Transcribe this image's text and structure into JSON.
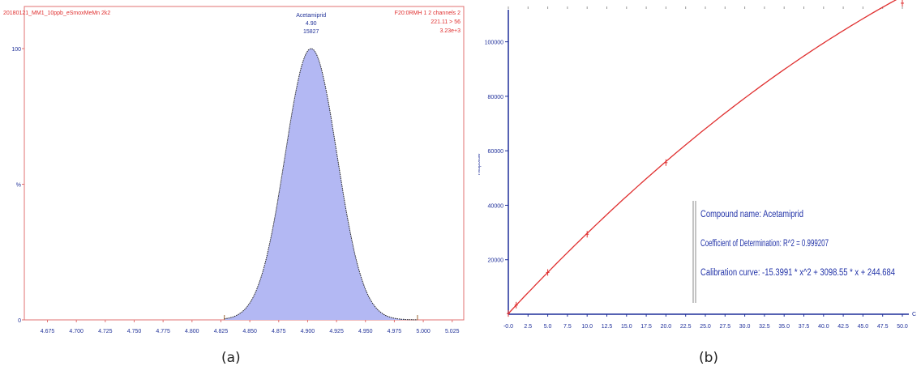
{
  "captions": {
    "a": "(a)",
    "b": "(b)"
  },
  "colors": {
    "frame": "#e07070",
    "axis": "#1f2f9a",
    "fill": "#b3b8f3",
    "peak_outline": "#222222",
    "curve": "#e03030",
    "header_red": "#e03030",
    "header_blue": "#223399",
    "legend_text": "#2233a8"
  },
  "chart_data": [
    {
      "type": "area",
      "header_left": "20180121_MM1_10ppb_eSmoxMeMn 2k2",
      "header_right": [
        "F20:0RMH 1 2 channels 2",
        "221.11 > 56",
        "3.23e+3"
      ],
      "peak_labels": [
        "Acetamiprid",
        "4.90",
        "15827"
      ],
      "xlim": [
        4.655,
        5.035
      ],
      "ylim": [
        0,
        100
      ],
      "y_ticks": [
        "100",
        "%",
        "0"
      ],
      "x_ticks": [
        "4.675",
        "4.700",
        "4.725",
        "4.750",
        "4.775",
        "4.800",
        "4.825",
        "4.850",
        "4.875",
        "4.900",
        "4.925",
        "4.950",
        "4.975",
        "5.000",
        "5.025"
      ],
      "x_tick_values": [
        4.675,
        4.7,
        4.725,
        4.75,
        4.775,
        4.8,
        4.825,
        4.85,
        4.875,
        4.9,
        4.925,
        4.95,
        4.975,
        5.0,
        5.025
      ],
      "peak": {
        "center": 4.903,
        "sigma": 0.0225,
        "height": 100,
        "start": 4.828,
        "end": 4.995
      }
    },
    {
      "type": "line",
      "xlabel": "Conc",
      "ylabel": "Response",
      "xlim": [
        0,
        50
      ],
      "ylim": [
        0,
        110000
      ],
      "x_ticks": [
        "-0.0",
        "2.5",
        "5.0",
        "7.5",
        "10.0",
        "12.5",
        "15.0",
        "17.5",
        "20.0",
        "22.5",
        "25.0",
        "27.5",
        "30.0",
        "32.5",
        "35.0",
        "37.5",
        "40.0",
        "42.5",
        "45.0",
        "47.5",
        "50.0"
      ],
      "y_ticks": [
        "20000",
        "40000",
        "60000",
        "80000",
        "100000"
      ],
      "y_tick_values": [
        20000,
        40000,
        60000,
        80000,
        100000
      ],
      "series": [
        {
          "x": [
            0,
            1,
            5,
            10,
            20,
            50
          ],
          "y": [
            245,
            3327,
            15332,
            29356,
            55652,
            114180
          ]
        }
      ],
      "fit": {
        "a": -15.3991,
        "b": 3098.55,
        "c": 244.684
      },
      "legend_lines": [
        "Compound name: Acetamiprid",
        "Coefficient of Determination: R^2 = 0.999207",
        "Calibration curve: -15.3991 * x^2 + 3098.55 * x + 244.684"
      ]
    }
  ]
}
